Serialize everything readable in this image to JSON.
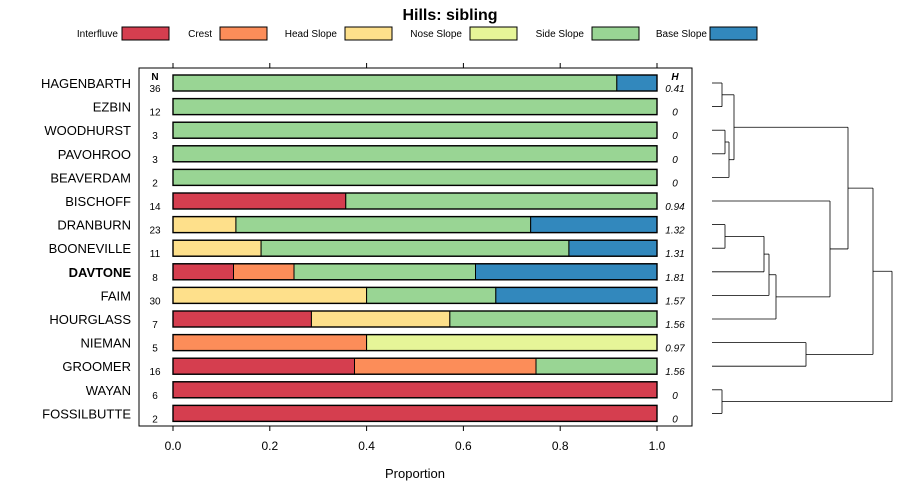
{
  "chart_data": {
    "type": "bar",
    "orientation": "horizontal",
    "stacked": true,
    "title": "Hills: sibling",
    "xlabel": "Proportion",
    "ylabel": "",
    "xlim": [
      0,
      1
    ],
    "x_ticks": [
      "0.0",
      "0.2",
      "0.4",
      "0.6",
      "0.8",
      "1.0"
    ],
    "x_tick_values": [
      0,
      0.2,
      0.4,
      0.6,
      0.8,
      1.0
    ],
    "legend_position": "top",
    "n_header": "N",
    "h_header": "H",
    "highlight_category": "DAVTONE",
    "categories": [
      "HAGENBARTH",
      "EZBIN",
      "WOODHURST",
      "PAVOHROO",
      "BEAVERDAM",
      "BISCHOFF",
      "DRANBURN",
      "BOONEVILLE",
      "DAVTONE",
      "FAIM",
      "HOURGLASS",
      "NIEMAN",
      "GROOMER",
      "WAYAN",
      "FOSSILBUTTE"
    ],
    "n_values": [
      "36",
      "12",
      "3",
      "3",
      "2",
      "14",
      "23",
      "11",
      "8",
      "30",
      "7",
      "5",
      "16",
      "6",
      "2"
    ],
    "h_values": [
      "0.41",
      "0",
      "0",
      "0",
      "0",
      "0.94",
      "1.32",
      "1.31",
      "1.81",
      "1.57",
      "1.56",
      "0.97",
      "1.56",
      "0",
      "0"
    ],
    "series": [
      {
        "name": "Interfluve",
        "color": "#d53e4f",
        "values": [
          0,
          0,
          0,
          0,
          0,
          0.357,
          0,
          0,
          0.125,
          0,
          0.286,
          0,
          0.375,
          1,
          1
        ]
      },
      {
        "name": "Crest",
        "color": "#fc8d59",
        "values": [
          0,
          0,
          0,
          0,
          0,
          0,
          0,
          0,
          0.125,
          0,
          0,
          0.4,
          0.375,
          0,
          0
        ]
      },
      {
        "name": "Head Slope",
        "color": "#fee08b",
        "values": [
          0,
          0,
          0,
          0,
          0,
          0,
          0.13,
          0.182,
          0,
          0.4,
          0.286,
          0,
          0,
          0,
          0
        ]
      },
      {
        "name": "Nose Slope",
        "color": "#e6f598",
        "values": [
          0,
          0,
          0,
          0,
          0,
          0,
          0,
          0,
          0,
          0,
          0,
          0.6,
          0,
          0,
          0
        ]
      },
      {
        "name": "Side Slope",
        "color": "#99d594",
        "values": [
          0.917,
          1,
          1,
          1,
          1,
          0.643,
          0.609,
          0.636,
          0.375,
          0.267,
          0.428,
          0,
          0.25,
          0,
          0
        ]
      },
      {
        "name": "Base Slope",
        "color": "#3288bd",
        "values": [
          0.083,
          0,
          0,
          0,
          0,
          0,
          0.261,
          0.182,
          0.375,
          0.333,
          0,
          0,
          0,
          0,
          0
        ]
      }
    ]
  }
}
